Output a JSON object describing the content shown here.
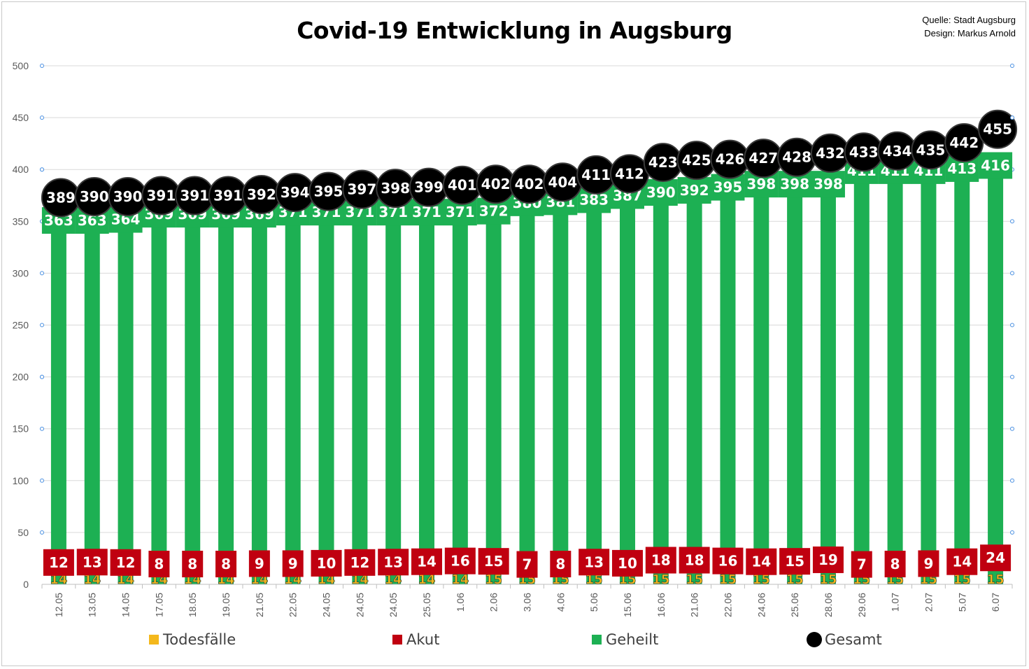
{
  "chart_data": {
    "type": "bar",
    "title": "Covid-19 Entwicklung in Augsburg",
    "source_lines": [
      "Quelle: Stadt Augsburg",
      "Design: Markus Arnold"
    ],
    "categories": [
      "12.05",
      "13.05",
      "14.05",
      "17.05",
      "18.05",
      "19.05",
      "21.05",
      "22.05",
      "24.05",
      "24.05",
      "24.05",
      "25.05",
      "1.06",
      "2.06",
      "3.06",
      "4.06",
      "5.06",
      "15.06",
      "16.06",
      "21.06",
      "22.06",
      "24.06",
      "25.06",
      "28.06",
      "29.06",
      "1.07",
      "2.07",
      "5.07",
      "6.07"
    ],
    "ylim": [
      0,
      500
    ],
    "yticks": [
      0,
      50,
      100,
      150,
      200,
      250,
      300,
      350,
      400,
      450,
      500
    ],
    "grid": true,
    "legend_position": "bottom",
    "series": [
      {
        "name": "Todesfälle",
        "color": "#f4b81c",
        "values": [
          14,
          14,
          14,
          14,
          14,
          14,
          14,
          14,
          14,
          14,
          14,
          14,
          14,
          15,
          15,
          15,
          15,
          15,
          15,
          15,
          15,
          15,
          15,
          15,
          15,
          15,
          15,
          15,
          15
        ]
      },
      {
        "name": "Akut",
        "color": "#c00010",
        "values": [
          12,
          13,
          12,
          8,
          8,
          8,
          9,
          9,
          10,
          12,
          13,
          14,
          16,
          15,
          7,
          8,
          13,
          10,
          18,
          18,
          16,
          14,
          15,
          19,
          7,
          8,
          9,
          14,
          24
        ]
      },
      {
        "name": "Geheilt",
        "color": "#1db053",
        "values": [
          363,
          363,
          364,
          369,
          369,
          369,
          369,
          371,
          371,
          371,
          371,
          371,
          371,
          372,
          380,
          381,
          383,
          387,
          390,
          392,
          395,
          398,
          398,
          398,
          411,
          411,
          411,
          413,
          416
        ]
      },
      {
        "name": "Gesamt",
        "color": "#000000",
        "values": [
          389,
          390,
          390,
          391,
          391,
          391,
          392,
          394,
          395,
          397,
          398,
          399,
          401,
          402,
          402,
          404,
          411,
          412,
          423,
          425,
          426,
          427,
          428,
          432,
          433,
          434,
          435,
          442,
          455
        ]
      }
    ]
  }
}
